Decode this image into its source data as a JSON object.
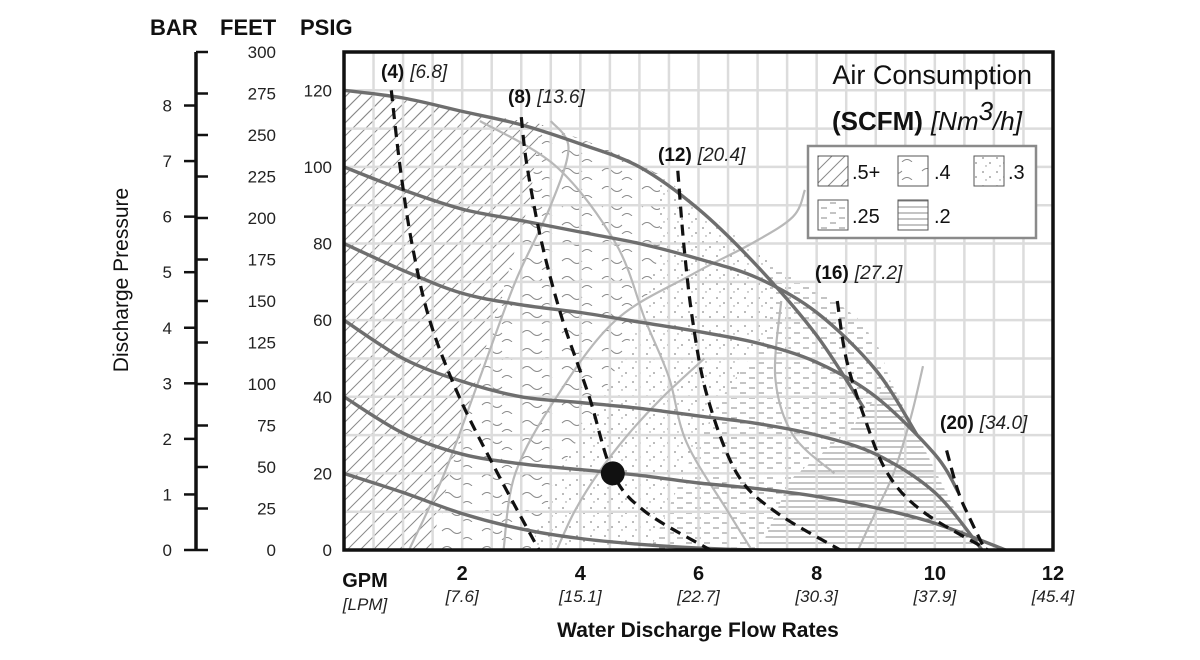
{
  "chart_data": {
    "type": "line",
    "title": "Air Consumption",
    "legend": {
      "title_bold": "(SCFM)",
      "title_italic_prefix": "[Nm",
      "title_sup": "3",
      "title_italic_suffix": "/h]",
      "placement": "top-right",
      "items": [
        {
          "label": ".5+",
          "pattern": "diagonal-hatch"
        },
        {
          "label": ".4",
          "pattern": "wavy"
        },
        {
          "label": ".3",
          "pattern": "dots"
        },
        {
          "label": ".25",
          "pattern": "dashes"
        },
        {
          "label": ".2",
          "pattern": "horizontal-lines"
        }
      ]
    },
    "xlabel": "Water Discharge Flow Rates",
    "x_unit_main": "GPM",
    "x_unit_sub": "[LPM]",
    "x_ticks": [
      {
        "gpm": "2",
        "lpm": "[7.6]"
      },
      {
        "gpm": "4",
        "lpm": "[15.1]"
      },
      {
        "gpm": "6",
        "lpm": "[22.7]"
      },
      {
        "gpm": "8",
        "lpm": "[30.3]"
      },
      {
        "gpm": "10",
        "lpm": "[37.9]"
      },
      {
        "gpm": "12",
        "lpm": "[45.4]"
      }
    ],
    "xlim": [
      0,
      12
    ],
    "ylabel": "Discharge Pressure",
    "y_axes": {
      "psig": {
        "title": "PSIG",
        "ticks": [
          "0",
          "20",
          "40",
          "60",
          "80",
          "100",
          "120"
        ],
        "range": [
          0,
          130
        ]
      },
      "feet": {
        "title": "FEET",
        "ticks": [
          "0",
          "25",
          "50",
          "75",
          "100",
          "125",
          "150",
          "175",
          "200",
          "225",
          "250",
          "275",
          "300"
        ]
      },
      "bar": {
        "title": "BAR",
        "ticks": [
          "0",
          "1",
          "2",
          "3",
          "4",
          "5",
          "6",
          "7",
          "8"
        ]
      }
    },
    "grid": true,
    "operating_point": {
      "x": 4.55,
      "y": 20
    },
    "pressure_curves": [
      {
        "x": [
          0,
          1,
          2,
          3,
          4,
          5,
          6,
          7,
          8,
          8.8
        ],
        "y": [
          120,
          118,
          114.5,
          111,
          106,
          100,
          89,
          74,
          56,
          37
        ]
      },
      {
        "x": [
          0,
          1,
          2,
          3,
          4,
          5,
          6,
          7,
          8,
          9,
          9.7
        ],
        "y": [
          100,
          94,
          89,
          86,
          83,
          80,
          76,
          71,
          62,
          47,
          30
        ]
      },
      {
        "x": [
          0,
          1,
          2,
          3,
          4,
          5,
          6,
          7,
          8,
          9,
          10,
          10.4
        ],
        "y": [
          80,
          73,
          67,
          64,
          62,
          59.5,
          57,
          54,
          49,
          40,
          25,
          15
        ]
      },
      {
        "x": [
          0,
          1,
          2,
          3,
          4,
          5,
          6,
          7,
          8,
          9,
          10,
          10.8
        ],
        "y": [
          60,
          50,
          44,
          40,
          38.5,
          37,
          35,
          33,
          30,
          25,
          15,
          0
        ]
      },
      {
        "x": [
          0,
          1,
          2,
          3,
          4,
          5,
          6,
          7,
          8,
          9,
          10,
          11.2
        ],
        "y": [
          40,
          30.5,
          25,
          22.5,
          21,
          19.5,
          17.5,
          16,
          14,
          11,
          7,
          0
        ]
      },
      {
        "x": [
          0,
          1,
          2,
          3,
          4,
          5,
          6,
          7,
          8,
          9
        ],
        "y": [
          20,
          15,
          9.5,
          5.5,
          3,
          1.5,
          0.5,
          0,
          0,
          0
        ]
      }
    ],
    "air_curves": [
      {
        "label": "(4)",
        "sub": "[6.8]",
        "x": [
          0.8,
          0.95,
          1.15,
          1.45,
          1.95,
          2.6,
          3.3
        ],
        "y": [
          120,
          100,
          80,
          60,
          40,
          20,
          0
        ]
      },
      {
        "label": "(8)",
        "sub": "[13.6]",
        "x": [
          3.0,
          3.1,
          3.35,
          3.7,
          4.15,
          4.55,
          5.1,
          6.2
        ],
        "y": [
          113,
          100,
          80,
          60,
          40,
          20,
          10,
          0
        ]
      },
      {
        "label": "(12)",
        "sub": "[20.4]",
        "x": [
          5.65,
          5.75,
          5.9,
          6.15,
          6.65,
          7.3,
          8.4
        ],
        "y": [
          99,
          80,
          60,
          40,
          20,
          10,
          0
        ]
      },
      {
        "label": "(16)",
        "sub": "[27.2]",
        "x": [
          8.35,
          8.5,
          8.8,
          9.2,
          9.8,
          10.9
        ],
        "y": [
          65,
          50,
          35,
          20,
          10,
          0
        ]
      },
      {
        "label": "(20)",
        "sub": "[34.0]",
        "x": [
          10.2,
          10.4,
          10.6,
          10.85
        ],
        "y": [
          26,
          15,
          8,
          0
        ]
      }
    ],
    "consumption_boundaries": [
      {
        "x": [
          6.9,
          6.5,
          5.8,
          5.5,
          5.1,
          4.6,
          3.6,
          2.3
        ],
        "y": [
          0,
          10,
          28,
          45,
          60,
          80,
          100,
          112
        ]
      },
      {
        "x": [
          3.6,
          3.9,
          4.3,
          4.8,
          5.4,
          6.1
        ],
        "y": [
          0,
          10,
          20,
          30,
          40,
          50
        ]
      },
      {
        "x": [
          1.1,
          1.7,
          2.3,
          2.9,
          3.5,
          3.8,
          3.5
        ],
        "y": [
          0,
          20,
          45,
          70,
          90,
          105,
          112
        ]
      },
      {
        "x": [
          2.7,
          2.9,
          3.6,
          4.6,
          5.9,
          6.9,
          7.6,
          7.8
        ],
        "y": [
          0,
          20,
          40,
          60,
          72,
          80,
          87,
          94
        ]
      },
      {
        "x": [
          7.4,
          7.3,
          7.6,
          8.3
        ],
        "y": [
          65,
          45,
          30,
          20
        ]
      },
      {
        "x": [
          8.7,
          9.0,
          9.3,
          9.6,
          9.8
        ],
        "y": [
          0,
          10,
          20,
          35,
          48
        ]
      }
    ]
  }
}
